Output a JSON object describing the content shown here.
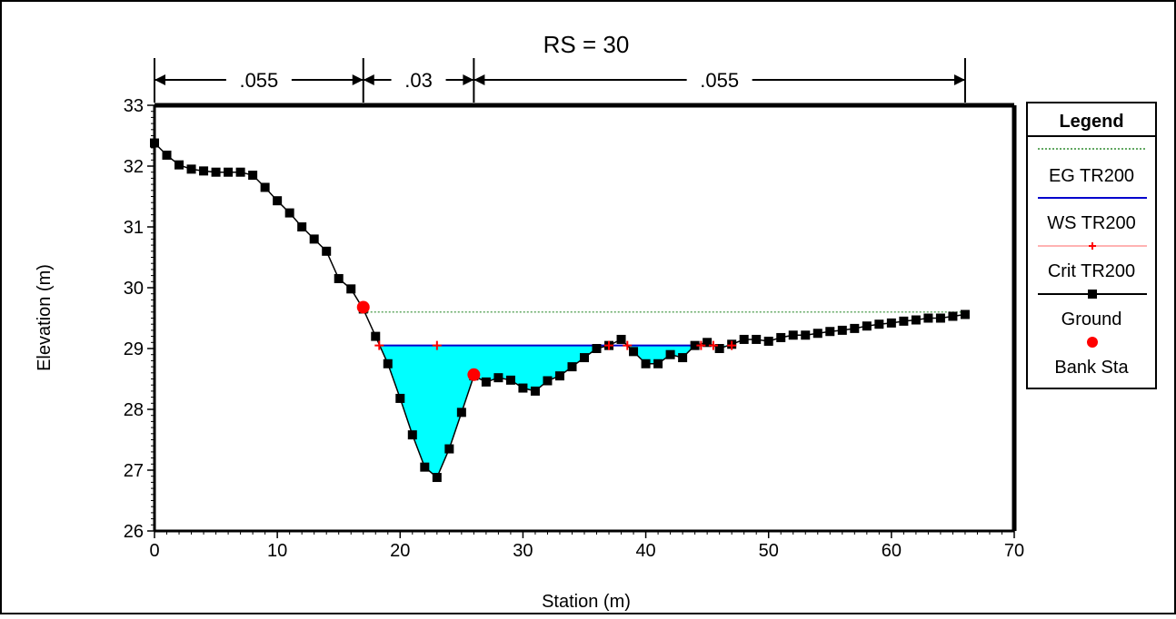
{
  "chart_data": {
    "type": "line",
    "title": "RS = 30",
    "xlabel": "Station (m)",
    "ylabel": "Elevation (m)",
    "xlim": [
      0,
      70
    ],
    "ylim": [
      26,
      33
    ],
    "x_ticks": [
      "0",
      "10",
      "20",
      "30",
      "40",
      "50",
      "60",
      "70"
    ],
    "y_ticks": [
      "26",
      "27",
      "28",
      "29",
      "30",
      "31",
      "32",
      "33"
    ],
    "grid": false,
    "legend_position": "right",
    "manning": [
      {
        "label": ".055",
        "from": 0,
        "to": 17
      },
      {
        "label": ".03",
        "from": 17,
        "to": 26
      },
      {
        "label": ".055",
        "from": 26,
        "to": 66
      }
    ],
    "legend": {
      "title": "Legend",
      "entries": [
        "EG TR200",
        "WS TR200",
        "Crit TR200",
        "Ground",
        "Bank Sta"
      ]
    },
    "series": [
      {
        "name": "EG TR200",
        "color": "#2e8b2e",
        "style": "dotted-line",
        "x": [
          17,
          66
        ],
        "y": [
          29.6,
          29.6
        ]
      },
      {
        "name": "WS TR200",
        "color": "#0000cc",
        "style": "line",
        "x": [
          18.3,
          44.5
        ],
        "y": [
          29.05,
          29.05
        ]
      },
      {
        "name": "Crit TR200",
        "color": "#ff0000",
        "style": "plus-markers",
        "x": [
          18.3,
          23,
          37,
          38.5,
          44.5,
          45.5,
          47
        ],
        "y": [
          29.05,
          29.05,
          29.05,
          29.05,
          29.05,
          29.05,
          29.05
        ]
      },
      {
        "name": "Ground",
        "color": "#000000",
        "style": "line-square-markers",
        "x": [
          0,
          1,
          2,
          3,
          4,
          5,
          6,
          7,
          8,
          9,
          10,
          11,
          12,
          13,
          14,
          15,
          16,
          17,
          18,
          19,
          20,
          21,
          22,
          23,
          24,
          25,
          26,
          27,
          28,
          29,
          30,
          31,
          32,
          33,
          34,
          35,
          36,
          37,
          38,
          39,
          40,
          41,
          42,
          43,
          44,
          45,
          46,
          47,
          48,
          49,
          50,
          51,
          52,
          53,
          54,
          55,
          56,
          57,
          58,
          59,
          60,
          61,
          62,
          63,
          64,
          65,
          66
        ],
        "y": [
          32.38,
          32.18,
          32.02,
          31.95,
          31.92,
          31.9,
          31.9,
          31.9,
          31.85,
          31.65,
          31.43,
          31.23,
          31.0,
          30.8,
          30.6,
          30.15,
          29.98,
          29.65,
          29.2,
          28.75,
          28.18,
          27.58,
          27.05,
          26.88,
          27.35,
          27.95,
          28.55,
          28.45,
          28.52,
          28.48,
          28.35,
          28.3,
          28.47,
          28.55,
          28.7,
          28.85,
          29.0,
          29.05,
          29.15,
          28.95,
          28.75,
          28.75,
          28.9,
          28.85,
          29.05,
          29.1,
          29.0,
          29.07,
          29.15,
          29.15,
          29.12,
          29.18,
          29.22,
          29.22,
          29.25,
          29.28,
          29.3,
          29.33,
          29.37,
          29.4,
          29.42,
          29.45,
          29.47,
          29.5,
          29.5,
          29.53,
          29.56
        ]
      },
      {
        "name": "Bank Sta",
        "color": "#ff0000",
        "style": "circle-markers",
        "x": [
          17,
          26
        ],
        "y": [
          29.68,
          28.57
        ]
      }
    ],
    "water_fill": "#00ffff"
  }
}
